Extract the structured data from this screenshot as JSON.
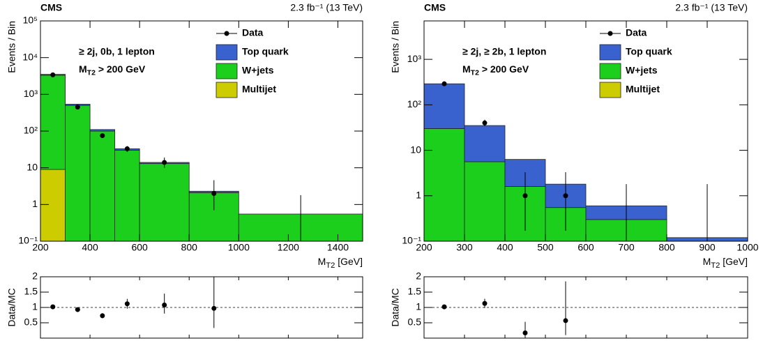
{
  "chart_data": [
    {
      "type": "stacked_histogram",
      "experiment": "CMS",
      "lumi": "2.3 fb⁻¹ (13 TeV)",
      "ylabel": "Events / Bin",
      "xlabel": {
        "main": "M",
        "sub": "T2",
        "rest": " [GeV]"
      },
      "annotation": [
        "≥ 2j, 0b, 1 lepton",
        {
          "main": "M",
          "sub": "T2",
          "rest": " > 200 GeV"
        }
      ],
      "log_y": true,
      "bins": [
        200,
        300,
        400,
        500,
        600,
        800,
        1000,
        1500
      ],
      "xlim": [
        200,
        1500
      ],
      "xticks": [
        200,
        400,
        600,
        800,
        1000,
        1200,
        1400
      ],
      "ylim": [
        0.1,
        100000
      ],
      "yticks": [
        {
          "value": 0.1,
          "label": "10⁻¹"
        },
        1,
        10,
        {
          "value": 100,
          "label": "10²"
        },
        {
          "value": 1000,
          "label": "10³"
        },
        {
          "value": 10000,
          "label": "10⁴"
        },
        {
          "value": 100000,
          "label": "10⁵"
        }
      ],
      "series": [
        {
          "name": "Top quark",
          "color": "#3a62cf",
          "values": [
            200,
            40,
            10,
            3,
            1,
            0.2,
            0
          ]
        },
        {
          "name": "W+jets",
          "color": "#1ccf1c",
          "values": [
            3300,
            500,
            100,
            30,
            13,
            2.1,
            0.55
          ]
        },
        {
          "name": "Multijet",
          "color": "#cccc00",
          "values": [
            9,
            0,
            0,
            0,
            0,
            0,
            0
          ]
        }
      ],
      "data": {
        "name": "Data",
        "x": [
          250,
          350,
          450,
          550,
          700,
          900,
          1250
        ],
        "values": [
          3400,
          450,
          75,
          33,
          14,
          2,
          0
        ],
        "err_low": [
          58,
          21,
          9,
          6,
          4,
          1.3,
          0
        ],
        "err_high": [
          58,
          21,
          9,
          6,
          5,
          2.6,
          1.8
        ]
      }
    },
    {
      "type": "errorbar",
      "ylabel": "Data/MC",
      "xlim": [
        200,
        1500
      ],
      "xticks": [
        200,
        400,
        600,
        800,
        1000,
        1200,
        1400
      ],
      "ylim": [
        0,
        2
      ],
      "yticks": [
        0.5,
        1,
        1.5,
        2
      ],
      "reference_line": 1,
      "x": [
        250,
        350,
        450,
        550,
        700,
        900
      ],
      "values": [
        1.02,
        0.93,
        0.73,
        1.12,
        1.08,
        0.97
      ],
      "err_low": [
        0.02,
        0.04,
        0.08,
        0.16,
        0.28,
        0.64
      ],
      "err_high": [
        0.02,
        0.04,
        0.08,
        0.16,
        0.37,
        1.1
      ]
    },
    {
      "type": "stacked_histogram",
      "experiment": "CMS",
      "lumi": "2.3 fb⁻¹ (13 TeV)",
      "ylabel": "Events / Bin",
      "xlabel": {
        "main": "M",
        "sub": "T2",
        "rest": " [GeV]"
      },
      "annotation": [
        "≥ 2j, ≥ 2b, 1 lepton",
        {
          "main": "M",
          "sub": "T2",
          "rest": " > 200 GeV"
        }
      ],
      "log_y": true,
      "bins": [
        200,
        300,
        400,
        500,
        600,
        800,
        1000
      ],
      "xlim": [
        200,
        1000
      ],
      "xticks": [
        200,
        300,
        400,
        500,
        600,
        700,
        800,
        900,
        1000
      ],
      "ylim": [
        0.1,
        7000
      ],
      "yticks": [
        {
          "value": 0.1,
          "label": "10⁻¹"
        },
        1,
        10,
        {
          "value": 100,
          "label": "10²"
        },
        {
          "value": 1000,
          "label": "10³"
        }
      ],
      "series": [
        {
          "name": "Top quark",
          "color": "#3a62cf",
          "values": [
            260,
            29.4,
            4.7,
            1.25,
            0.3,
            0.12
          ]
        },
        {
          "name": "W+jets",
          "color": "#1ccf1c",
          "values": [
            30,
            5.6,
            1.6,
            0.55,
            0.3,
            0
          ]
        },
        {
          "name": "Multijet",
          "color": "#cccc00",
          "values": [
            0,
            0,
            0,
            0,
            0,
            0
          ]
        }
      ],
      "data": {
        "name": "Data",
        "x": [
          250,
          350,
          450,
          550,
          700,
          900
        ],
        "values": [
          290,
          40,
          1,
          1,
          0,
          0
        ],
        "err_low": [
          17,
          6,
          0.83,
          0.83,
          0,
          0
        ],
        "err_high": [
          17,
          7,
          2.3,
          2.3,
          1.8,
          1.8
        ]
      }
    },
    {
      "type": "errorbar",
      "ylabel": "Data/MC",
      "xlim": [
        200,
        1000
      ],
      "xticks": [
        200,
        300,
        400,
        500,
        600,
        700,
        800,
        900,
        1000
      ],
      "ylim": [
        0,
        2
      ],
      "yticks": [
        0.5,
        1,
        1.5,
        2
      ],
      "reference_line": 1,
      "x": [
        250,
        350,
        450,
        550
      ],
      "values": [
        1.02,
        1.13,
        0.17,
        0.57
      ],
      "err_low": [
        0.02,
        0.15,
        0.17,
        0.47
      ],
      "err_high": [
        0.02,
        0.15,
        0.36,
        1.28
      ]
    }
  ]
}
